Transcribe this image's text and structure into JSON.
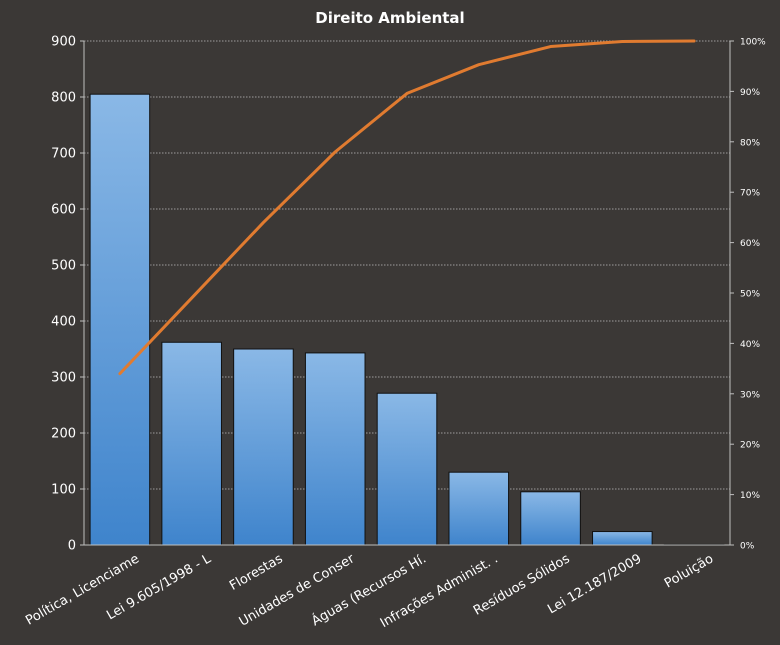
{
  "chart_data": {
    "type": "bar",
    "title": "Direito  Ambiental",
    "categories": [
      "Política, Licenciame",
      "Lei 9.605/1998 - L",
      "Florestas",
      "Unidades de Conser",
      "Águas (Recursos Hí.",
      "Infrações Administ. .",
      "Resíduos Sólidos",
      "Lei 12.187/2009",
      "Poluição"
    ],
    "series": [
      {
        "type": "bar",
        "values": [
          805,
          362,
          350,
          343,
          271,
          130,
          95,
          24,
          1
        ]
      },
      {
        "type": "line",
        "axis": "secondary",
        "values": [
          0.34,
          0.49,
          0.64,
          0.78,
          0.896,
          0.953,
          0.989,
          0.999,
          1.0
        ]
      }
    ],
    "ylim": [
      0,
      900
    ],
    "yticks": [
      "0",
      "100",
      "200",
      "300",
      "400",
      "500",
      "600",
      "700",
      "800",
      "900"
    ],
    "y2lim": [
      0,
      1
    ],
    "y2ticks": [
      "0%",
      "10%",
      "20%",
      "30%",
      "40%",
      "50%",
      "60%",
      "70%",
      "80%",
      "90%",
      "100%"
    ],
    "grid": true,
    "legend": "none",
    "colors": {
      "background": "#3b3836",
      "bar_top": "#8ab8e6",
      "bar_bottom": "#3f84cc",
      "line": "#e07b30",
      "grid": "#bfbfbf",
      "text": "#ffffff"
    }
  }
}
